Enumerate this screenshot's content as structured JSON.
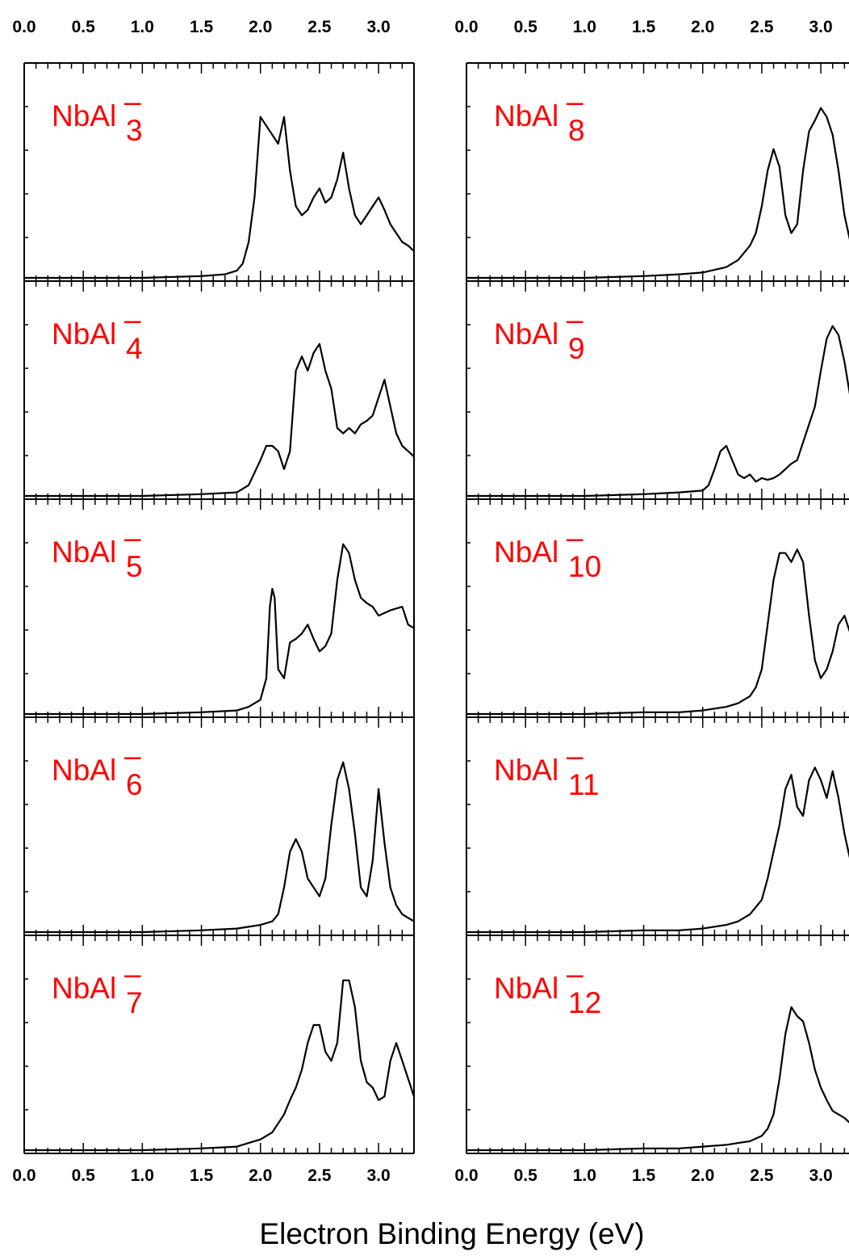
{
  "chart_data": {
    "type": "line",
    "xlabel": "Electron Binding Energy (eV)",
    "xlim": [
      0.0,
      3.3
    ],
    "xticks": [
      "0.0",
      "0.5",
      "1.0",
      "1.5",
      "2.0",
      "2.5",
      "3.0"
    ],
    "columns": 2,
    "panels": [
      {
        "label_base": "NbAl",
        "label_sub": "3",
        "label_sup": "–",
        "x": [
          0.0,
          1.0,
          1.5,
          1.7,
          1.8,
          1.85,
          1.9,
          1.95,
          2.0,
          2.05,
          2.1,
          2.15,
          2.2,
          2.25,
          2.3,
          2.35,
          2.4,
          2.45,
          2.5,
          2.55,
          2.6,
          2.65,
          2.7,
          2.75,
          2.8,
          2.85,
          2.9,
          2.95,
          3.0,
          3.05,
          3.1,
          3.15,
          3.2,
          3.25,
          3.3
        ],
        "y": [
          0.0,
          0.0,
          0.01,
          0.02,
          0.04,
          0.08,
          0.2,
          0.45,
          0.9,
          0.85,
          0.8,
          0.75,
          0.9,
          0.6,
          0.4,
          0.35,
          0.38,
          0.45,
          0.5,
          0.42,
          0.45,
          0.55,
          0.7,
          0.5,
          0.35,
          0.3,
          0.35,
          0.4,
          0.45,
          0.38,
          0.3,
          0.25,
          0.2,
          0.18,
          0.15
        ]
      },
      {
        "label_base": "NbAl",
        "label_sub": "4",
        "label_sup": "–",
        "x": [
          0.0,
          1.0,
          1.5,
          1.8,
          1.9,
          2.0,
          2.05,
          2.1,
          2.15,
          2.2,
          2.25,
          2.3,
          2.35,
          2.4,
          2.45,
          2.5,
          2.55,
          2.6,
          2.65,
          2.7,
          2.75,
          2.8,
          2.85,
          2.9,
          2.95,
          3.0,
          3.05,
          3.1,
          3.15,
          3.2,
          3.25,
          3.3
        ],
        "y": [
          0.0,
          0.0,
          0.01,
          0.02,
          0.06,
          0.2,
          0.28,
          0.28,
          0.25,
          0.15,
          0.25,
          0.7,
          0.78,
          0.7,
          0.8,
          0.85,
          0.7,
          0.6,
          0.38,
          0.35,
          0.38,
          0.35,
          0.4,
          0.42,
          0.45,
          0.55,
          0.65,
          0.5,
          0.35,
          0.28,
          0.25,
          0.22
        ]
      },
      {
        "label_base": "NbAl",
        "label_sub": "5",
        "label_sup": "–",
        "x": [
          0.0,
          1.0,
          1.5,
          1.8,
          1.9,
          2.0,
          2.05,
          2.08,
          2.1,
          2.12,
          2.15,
          2.2,
          2.25,
          2.3,
          2.35,
          2.4,
          2.45,
          2.5,
          2.55,
          2.6,
          2.65,
          2.7,
          2.75,
          2.8,
          2.85,
          2.9,
          2.95,
          3.0,
          3.1,
          3.2,
          3.25,
          3.3
        ],
        "y": [
          0.0,
          0.0,
          0.01,
          0.02,
          0.04,
          0.08,
          0.2,
          0.6,
          0.7,
          0.65,
          0.25,
          0.2,
          0.4,
          0.42,
          0.45,
          0.5,
          0.42,
          0.35,
          0.38,
          0.45,
          0.75,
          0.95,
          0.9,
          0.75,
          0.65,
          0.62,
          0.6,
          0.55,
          0.58,
          0.6,
          0.5,
          0.48
        ]
      },
      {
        "label_base": "NbAl",
        "label_sub": "6",
        "label_sup": "–",
        "x": [
          0.0,
          1.0,
          1.5,
          1.8,
          1.9,
          2.0,
          2.1,
          2.15,
          2.2,
          2.25,
          2.3,
          2.35,
          2.4,
          2.45,
          2.5,
          2.55,
          2.6,
          2.65,
          2.7,
          2.75,
          2.8,
          2.85,
          2.9,
          2.95,
          3.0,
          3.05,
          3.1,
          3.15,
          3.2,
          3.25,
          3.3
        ],
        "y": [
          0.0,
          0.0,
          0.01,
          0.02,
          0.03,
          0.04,
          0.06,
          0.1,
          0.25,
          0.45,
          0.52,
          0.45,
          0.3,
          0.25,
          0.2,
          0.3,
          0.6,
          0.85,
          0.95,
          0.8,
          0.55,
          0.25,
          0.2,
          0.4,
          0.8,
          0.5,
          0.25,
          0.15,
          0.1,
          0.08,
          0.06
        ]
      },
      {
        "label_base": "NbAl",
        "label_sub": "7",
        "label_sup": "–",
        "x": [
          0.0,
          1.0,
          1.5,
          1.8,
          1.9,
          2.0,
          2.1,
          2.15,
          2.2,
          2.25,
          2.3,
          2.35,
          2.4,
          2.45,
          2.5,
          2.55,
          2.6,
          2.65,
          2.7,
          2.75,
          2.8,
          2.85,
          2.9,
          2.95,
          3.0,
          3.05,
          3.1,
          3.15,
          3.2,
          3.25,
          3.3
        ],
        "y": [
          0.0,
          0.0,
          0.01,
          0.02,
          0.04,
          0.06,
          0.1,
          0.15,
          0.2,
          0.28,
          0.35,
          0.45,
          0.6,
          0.7,
          0.7,
          0.55,
          0.5,
          0.6,
          0.95,
          0.95,
          0.8,
          0.5,
          0.38,
          0.35,
          0.28,
          0.3,
          0.5,
          0.6,
          0.5,
          0.4,
          0.3
        ]
      },
      {
        "label_base": "NbAl",
        "label_sub": "8",
        "label_sup": "–",
        "x": [
          0.0,
          1.0,
          1.5,
          1.8,
          2.0,
          2.2,
          2.3,
          2.4,
          2.45,
          2.5,
          2.55,
          2.6,
          2.65,
          2.7,
          2.75,
          2.8,
          2.85,
          2.9,
          2.95,
          3.0,
          3.05,
          3.1,
          3.15,
          3.2,
          3.25,
          3.3
        ],
        "y": [
          0.0,
          0.0,
          0.01,
          0.02,
          0.03,
          0.06,
          0.1,
          0.18,
          0.25,
          0.4,
          0.6,
          0.72,
          0.62,
          0.35,
          0.25,
          0.3,
          0.6,
          0.82,
          0.88,
          0.95,
          0.9,
          0.8,
          0.6,
          0.35,
          0.2,
          0.15
        ]
      },
      {
        "label_base": "NbAl",
        "label_sub": "9",
        "label_sup": "–",
        "x": [
          0.0,
          1.0,
          1.5,
          1.8,
          2.0,
          2.05,
          2.1,
          2.15,
          2.2,
          2.25,
          2.3,
          2.35,
          2.4,
          2.45,
          2.5,
          2.55,
          2.6,
          2.65,
          2.7,
          2.75,
          2.8,
          2.85,
          2.9,
          2.95,
          3.0,
          3.05,
          3.1,
          3.15,
          3.2,
          3.25,
          3.3
        ],
        "y": [
          0.0,
          0.0,
          0.01,
          0.02,
          0.03,
          0.06,
          0.15,
          0.25,
          0.28,
          0.2,
          0.12,
          0.1,
          0.12,
          0.08,
          0.1,
          0.09,
          0.1,
          0.12,
          0.15,
          0.18,
          0.2,
          0.3,
          0.4,
          0.5,
          0.7,
          0.88,
          0.95,
          0.9,
          0.75,
          0.55,
          0.4
        ]
      },
      {
        "label_base": "NbAl",
        "label_sub": "10",
        "label_sup": "–",
        "x": [
          0.0,
          1.0,
          1.5,
          1.8,
          2.0,
          2.2,
          2.3,
          2.4,
          2.45,
          2.5,
          2.55,
          2.6,
          2.65,
          2.7,
          2.75,
          2.8,
          2.85,
          2.9,
          2.95,
          3.0,
          3.05,
          3.1,
          3.15,
          3.2,
          3.25,
          3.3
        ],
        "y": [
          0.0,
          0.0,
          0.01,
          0.01,
          0.02,
          0.04,
          0.06,
          0.1,
          0.15,
          0.25,
          0.5,
          0.75,
          0.9,
          0.9,
          0.85,
          0.92,
          0.85,
          0.55,
          0.3,
          0.2,
          0.25,
          0.35,
          0.5,
          0.55,
          0.45,
          0.35
        ]
      },
      {
        "label_base": "NbAl",
        "label_sub": "11",
        "label_sup": "–",
        "x": [
          0.0,
          1.0,
          1.5,
          1.8,
          2.0,
          2.2,
          2.3,
          2.4,
          2.5,
          2.55,
          2.6,
          2.65,
          2.7,
          2.75,
          2.8,
          2.85,
          2.9,
          2.95,
          3.0,
          3.05,
          3.1,
          3.15,
          3.2,
          3.25,
          3.3
        ],
        "y": [
          0.0,
          0.0,
          0.01,
          0.01,
          0.02,
          0.04,
          0.06,
          0.1,
          0.18,
          0.3,
          0.45,
          0.6,
          0.8,
          0.88,
          0.7,
          0.65,
          0.85,
          0.92,
          0.85,
          0.75,
          0.9,
          0.75,
          0.55,
          0.4,
          0.3
        ]
      },
      {
        "label_base": "NbAl",
        "label_sub": "12",
        "label_sup": "–",
        "x": [
          0.0,
          1.0,
          1.5,
          1.8,
          2.0,
          2.2,
          2.3,
          2.4,
          2.5,
          2.55,
          2.6,
          2.65,
          2.7,
          2.75,
          2.8,
          2.85,
          2.9,
          2.95,
          3.0,
          3.05,
          3.1,
          3.15,
          3.2,
          3.25,
          3.3
        ],
        "y": [
          0.0,
          0.0,
          0.01,
          0.01,
          0.02,
          0.03,
          0.04,
          0.05,
          0.08,
          0.12,
          0.2,
          0.4,
          0.65,
          0.8,
          0.75,
          0.72,
          0.6,
          0.45,
          0.35,
          0.28,
          0.22,
          0.2,
          0.18,
          0.15,
          0.13
        ]
      }
    ]
  }
}
